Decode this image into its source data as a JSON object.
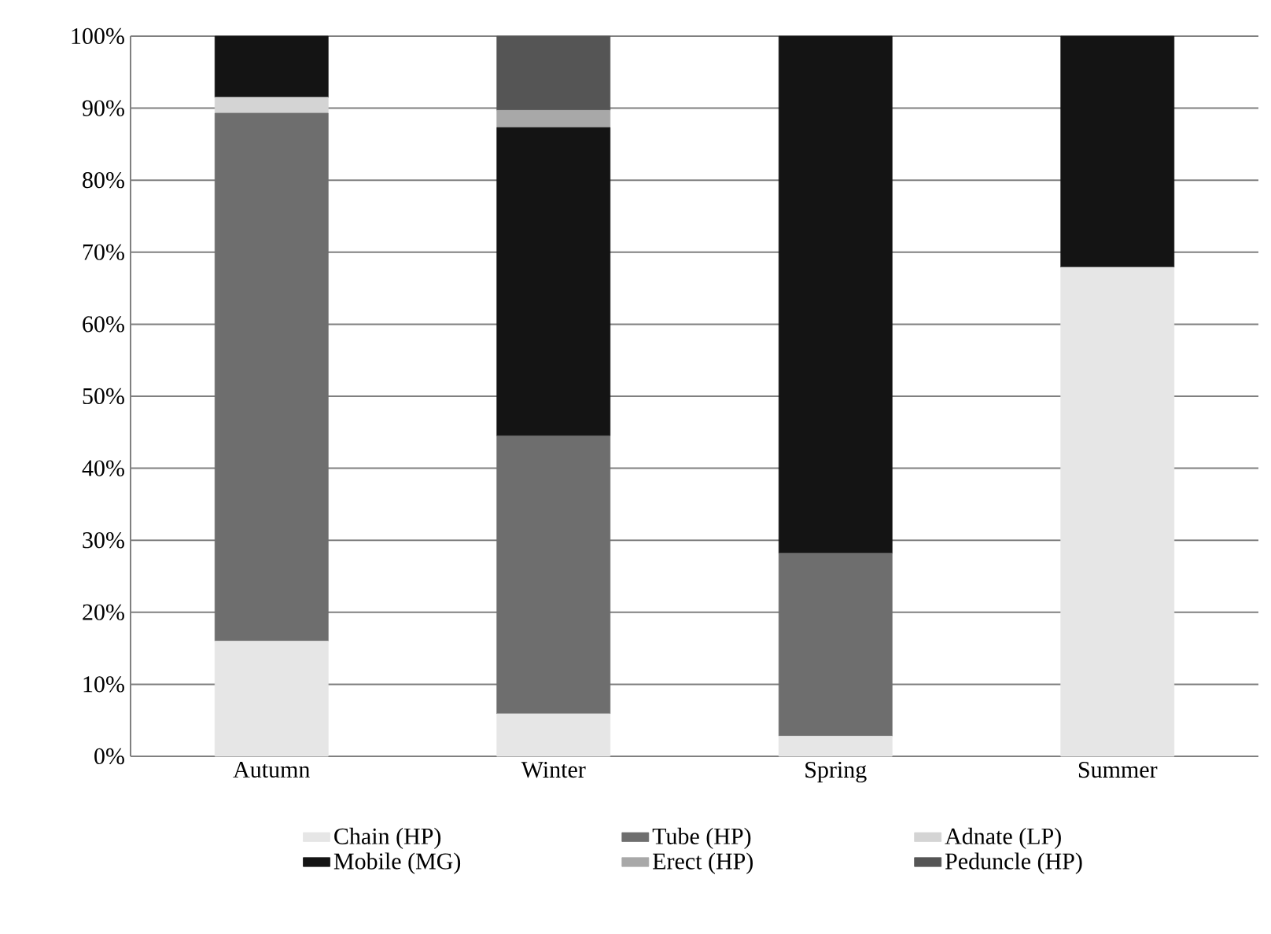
{
  "chart_data": {
    "type": "bar",
    "stacked": true,
    "categories": [
      "Autumn",
      "Winter",
      "Spring",
      "Summer"
    ],
    "series": [
      {
        "name": "Chain (HP)",
        "color": "#e6e6e6",
        "values": [
          16,
          5.9,
          2.8,
          67.9
        ]
      },
      {
        "name": "Tube (HP)",
        "color": "#6e6e6e",
        "values": [
          73.3,
          38.6,
          25.4,
          0
        ]
      },
      {
        "name": "Adnate (LP)",
        "color": "#d4d4d4",
        "values": [
          2.2,
          0,
          0,
          0
        ]
      },
      {
        "name": "Mobile (MG)",
        "color": "#141414",
        "values": [
          8.5,
          42.8,
          71.8,
          32.1
        ]
      },
      {
        "name": "Erect (HP)",
        "color": "#a8a8a8",
        "values": [
          0,
          2.4,
          0,
          0
        ]
      },
      {
        "name": "Peduncle (HP)",
        "color": "#555555",
        "values": [
          0,
          10.3,
          0,
          0
        ]
      }
    ],
    "ylim": [
      0,
      100
    ],
    "yticks": [
      {
        "value": 0,
        "label": "0%"
      },
      {
        "value": 10,
        "label": "10%"
      },
      {
        "value": 20,
        "label": "20%"
      },
      {
        "value": 30,
        "label": "30%"
      },
      {
        "value": 40,
        "label": "40%"
      },
      {
        "value": 50,
        "label": "50%"
      },
      {
        "value": 60,
        "label": "60%"
      },
      {
        "value": 70,
        "label": "70%"
      },
      {
        "value": 80,
        "label": "80%"
      },
      {
        "value": 90,
        "label": "90%"
      },
      {
        "value": 100,
        "label": "100%"
      }
    ],
    "grid": "y",
    "legend": "bottom"
  }
}
